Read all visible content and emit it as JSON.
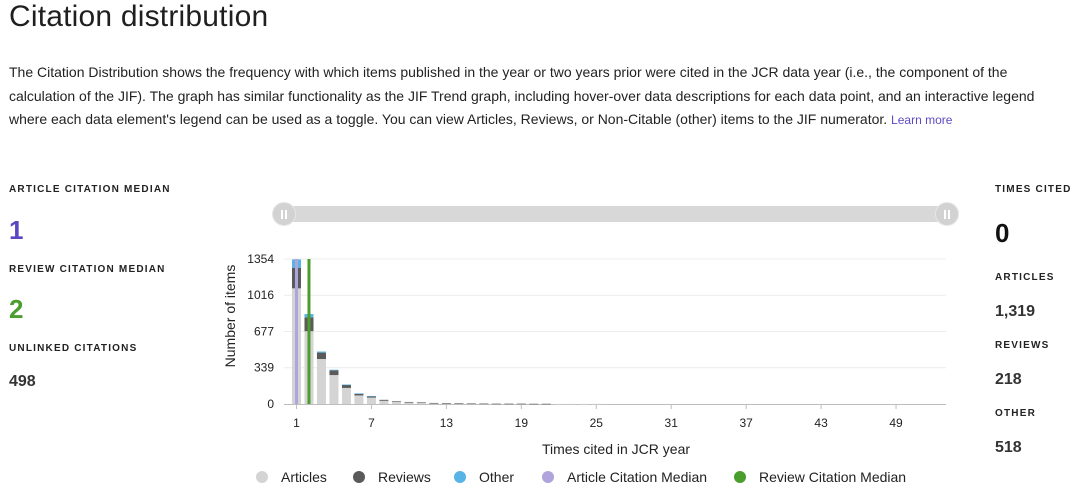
{
  "title": "Citation distribution",
  "description": "The Citation Distribution shows the frequency with which items published in the year or two years prior were cited in the JCR data year (i.e., the component of the calculation of the JIF). The graph has similar functionality as the JIF Trend graph, including hover-over data descriptions for each data point, and an interactive legend where each data element's legend can be used as a toggle. You can view Articles, Reviews, or Non-Citable (other) items to the JIF numerator.",
  "learn_more": "Learn more",
  "left_stats": {
    "article_median_label": "ARTICLE CITATION MEDIAN",
    "article_median_value": "1",
    "review_median_label": "REVIEW CITATION MEDIAN",
    "review_median_value": "2",
    "unlinked_label": "UNLINKED CITATIONS",
    "unlinked_value": "498"
  },
  "right_stats": {
    "times_cited_label": "TIMES CITED",
    "times_cited_value": "0",
    "articles_label": "ARTICLES",
    "articles_value": "1,319",
    "reviews_label": "REVIEWS",
    "reviews_value": "218",
    "other_label": "OTHER",
    "other_value": "518"
  },
  "colors": {
    "articles": "#d4d4d4",
    "reviews": "#5a5a5a",
    "other": "#58b4e4",
    "article_median": "#b0a4dc",
    "review_median": "#4a9e2e",
    "article_median_text": "#5b45c0",
    "review_median_text": "#4a9e2e"
  },
  "chart_data": {
    "type": "bar",
    "stacked": true,
    "xlabel": "Times cited in JCR year",
    "ylabel": "Number of items",
    "ylim": [
      0,
      1354
    ],
    "yticks": [
      0,
      339,
      677,
      1016,
      1354
    ],
    "xlim": [
      0,
      53
    ],
    "xticks": [
      1,
      7,
      13,
      19,
      25,
      31,
      37,
      43,
      49
    ],
    "grid": true,
    "categories": [
      1,
      2,
      3,
      4,
      5,
      6,
      7,
      8,
      9,
      10,
      11,
      12,
      13,
      14,
      15,
      16,
      17,
      18,
      19,
      20,
      21,
      22,
      23,
      24,
      25,
      26,
      27,
      28,
      29,
      30,
      31,
      32,
      33,
      34,
      35,
      36,
      37,
      38,
      39,
      40,
      41,
      42,
      43,
      44,
      45,
      46,
      47,
      48,
      49,
      50,
      51,
      52
    ],
    "series": [
      {
        "name": "Articles",
        "values": [
          1080,
          680,
          420,
          270,
          150,
          80,
          60,
          30,
          20,
          15,
          12,
          8,
          6,
          5,
          4,
          3,
          2,
          2,
          2,
          1,
          1,
          1,
          1,
          1,
          1,
          0,
          0,
          0,
          0,
          0,
          0,
          0,
          0,
          0,
          0,
          0,
          0,
          0,
          0,
          0,
          0,
          0,
          0,
          0,
          0,
          0,
          0,
          0,
          0,
          0,
          0,
          0
        ]
      },
      {
        "name": "Reviews",
        "values": [
          190,
          130,
          60,
          45,
          30,
          18,
          14,
          9,
          6,
          4,
          3,
          2,
          2,
          2,
          1,
          1,
          1,
          1,
          1,
          1,
          1,
          0,
          0,
          0,
          0,
          0,
          0,
          0,
          0,
          0,
          0,
          0,
          0,
          0,
          0,
          0,
          0,
          0,
          0,
          0,
          0,
          0,
          0,
          0,
          0,
          0,
          0,
          0,
          0,
          0,
          0,
          0
        ]
      },
      {
        "name": "Other",
        "values": [
          80,
          30,
          10,
          5,
          2,
          1,
          1,
          0,
          0,
          0,
          0,
          0,
          0,
          0,
          0,
          0,
          0,
          0,
          0,
          0,
          0,
          0,
          0,
          0,
          0,
          0,
          0,
          0,
          0,
          0,
          0,
          0,
          0,
          0,
          0,
          0,
          0,
          0,
          0,
          0,
          0,
          0,
          0,
          0,
          0,
          0,
          0,
          0,
          0,
          0,
          0,
          0
        ]
      }
    ],
    "medians": [
      {
        "name": "Article Citation Median",
        "x": 1
      },
      {
        "name": "Review Citation Median",
        "x": 2
      }
    ],
    "legend": [
      "Articles",
      "Reviews",
      "Other",
      "Article Citation Median",
      "Review Citation Median"
    ],
    "legend_position": "bottom"
  }
}
